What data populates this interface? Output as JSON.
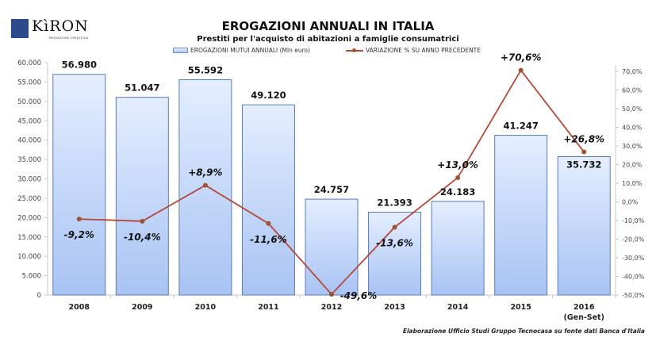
{
  "header": {
    "logo_text": "KìRON",
    "logo_sub": "MEDIAZIONE CREDITIZIA",
    "title": "EROGAZIONI ANNUALI IN ITALIA",
    "subtitle": "Prestiti per l'acquisto di abitazioni  a famiglie consumatrici"
  },
  "footer": {
    "source": "Elaborazione Ufficio Studi Gruppo Tecnocasa su fonte dati Banca d'Italia"
  },
  "colors": {
    "bar_fill_top": "#e4eeff",
    "bar_fill_bottom": "#a8c3f3",
    "bar_border": "#5a7bb5",
    "line": "#b5483a",
    "marker": "#a0522d"
  },
  "chart_data": {
    "type": "bar",
    "title": "EROGAZIONI ANNUALI IN ITALIA",
    "subtitle": "Prestiti per l'acquisto di abitazioni  a famiglie consumatrici",
    "categories": [
      "2008",
      "2009",
      "2010",
      "2011",
      "2012",
      "2013",
      "2014",
      "2015",
      "2016"
    ],
    "category_sublabels": [
      "",
      "",
      "",
      "",
      "",
      "",
      "",
      "",
      "(Gen-Set)"
    ],
    "series": [
      {
        "name": "EROGAZIONI MUTUI ANNUALI (Mln euro)",
        "type": "bar",
        "axis": "left",
        "values": [
          56980,
          51047,
          55592,
          49120,
          24757,
          21393,
          24183,
          41247,
          35732
        ],
        "labels": [
          "56.980",
          "51.047",
          "55.592",
          "49.120",
          "24.757",
          "21.393",
          "24.183",
          "41.247",
          "35.732"
        ]
      },
      {
        "name": "VARIAZIONE % SU ANNO PRECEDENTE",
        "type": "line",
        "axis": "right",
        "values": [
          -9.2,
          -10.4,
          8.9,
          -11.6,
          -49.6,
          -13.6,
          13.0,
          70.6,
          26.8
        ],
        "labels": [
          "-9,2%",
          "-10,4%",
          "+8,9%",
          "-11,6%",
          "-49,6%",
          "-13,6%",
          "+13,0%",
          "+70,6%",
          "+26,8%"
        ]
      }
    ],
    "y_left": {
      "range": [
        0,
        60000
      ],
      "ticks": [
        0,
        5000,
        10000,
        15000,
        20000,
        25000,
        30000,
        35000,
        40000,
        45000,
        50000,
        55000,
        60000
      ],
      "tick_labels": [
        "0",
        "5.000",
        "10.000",
        "15.000",
        "20.000",
        "25.000",
        "30.000",
        "35.000",
        "40.000",
        "45.000",
        "50.000",
        "55.000",
        "60.000"
      ]
    },
    "y_right": {
      "range": [
        -50,
        70
      ],
      "ticks": [
        -50,
        -40,
        -30,
        -20,
        -10,
        0,
        10,
        20,
        30,
        40,
        50,
        60,
        70
      ],
      "tick_labels": [
        "-50,0%",
        "-40,0%",
        "-30,0%",
        "-20,0%",
        "-10,0%",
        "0,0%",
        "10,0%",
        "20,0%",
        "30,0%",
        "40,0%",
        "50,0%",
        "60,0%",
        "70,0%"
      ]
    },
    "xlabel": "",
    "ylabel": "",
    "grid": false,
    "legend": "top-center"
  }
}
